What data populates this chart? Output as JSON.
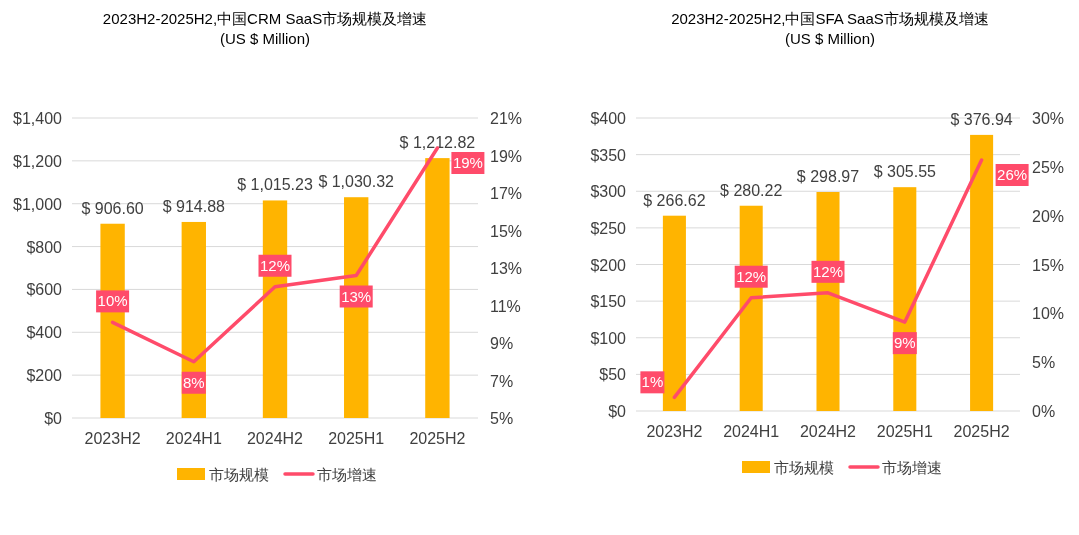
{
  "chart_data": [
    {
      "type": "bar",
      "title": "2023H2-2025H2,中国CRM SaaS市场规模及增速",
      "subtitle": "(US $ Million)",
      "categories": [
        "2023H2",
        "2024H1",
        "2024H2",
        "2025H1",
        "2025H2"
      ],
      "series": [
        {
          "name": "市场规模",
          "color": "#ffb400",
          "values": [
            906.6,
            914.88,
            1015.23,
            1030.32,
            1212.82
          ],
          "value_labels": [
            "$ 906.60",
            "$ 914.88",
            "$ 1,015.23",
            "$ 1,030.32",
            "$ 1,212.82"
          ]
        },
        {
          "name": "市场增速",
          "type": "line",
          "axis": "y2",
          "color": "#ff4b6a",
          "values": [
            10.1,
            8.0,
            12.0,
            12.6,
            19.4
          ],
          "value_labels": [
            "10%",
            "8%",
            "12%",
            "13%",
            "19%"
          ]
        }
      ],
      "ylim": [
        0,
        1400
      ],
      "yticks": [
        {
          "value": 0,
          "label": "$0"
        },
        {
          "value": 200,
          "label": "$200"
        },
        {
          "value": 400,
          "label": "$400"
        },
        {
          "value": 600,
          "label": "$600"
        },
        {
          "value": 800,
          "label": "$800"
        },
        {
          "value": 1000,
          "label": "$1,000"
        },
        {
          "value": 1200,
          "label": "$1,200"
        },
        {
          "value": 1400,
          "label": "$1,400"
        }
      ],
      "y2lim": [
        5,
        21
      ],
      "y2ticks": [
        {
          "value": 5,
          "label": "5%"
        },
        {
          "value": 7,
          "label": "7%"
        },
        {
          "value": 9,
          "label": "9%"
        },
        {
          "value": 11,
          "label": "11%"
        },
        {
          "value": 13,
          "label": "13%"
        },
        {
          "value": 15,
          "label": "15%"
        },
        {
          "value": 17,
          "label": "17%"
        },
        {
          "value": 19,
          "label": "19%"
        },
        {
          "value": 21,
          "label": "21%"
        }
      ],
      "grid": "y",
      "legend": "bottom",
      "marker": "none",
      "line_style": "solid"
    },
    {
      "type": "bar",
      "title": "2023H2-2025H2,中国SFA SaaS市场规模及增速",
      "subtitle": "(US $ Million)",
      "categories": [
        "2023H2",
        "2024H1",
        "2024H2",
        "2025H1",
        "2025H2"
      ],
      "series": [
        {
          "name": "市场规模",
          "color": "#ffb400",
          "values": [
            266.62,
            280.22,
            298.97,
            305.55,
            376.94
          ],
          "value_labels": [
            "$ 266.62",
            "$ 280.22",
            "$ 298.97",
            "$ 305.55",
            "$ 376.94"
          ]
        },
        {
          "name": "市场增速",
          "type": "line",
          "axis": "y2",
          "color": "#ff4b6a",
          "values": [
            1.4,
            11.6,
            12.1,
            9.1,
            25.7
          ],
          "value_labels": [
            "1%",
            "12%",
            "12%",
            "9%",
            "26%"
          ]
        }
      ],
      "ylim": [
        0,
        400
      ],
      "yticks": [
        {
          "value": 0,
          "label": "$0"
        },
        {
          "value": 50,
          "label": "$50"
        },
        {
          "value": 100,
          "label": "$100"
        },
        {
          "value": 150,
          "label": "$150"
        },
        {
          "value": 200,
          "label": "$200"
        },
        {
          "value": 250,
          "label": "$250"
        },
        {
          "value": 300,
          "label": "$300"
        },
        {
          "value": 350,
          "label": "$350"
        },
        {
          "value": 400,
          "label": "$400"
        }
      ],
      "y2lim": [
        0,
        30
      ],
      "y2ticks": [
        {
          "value": 0,
          "label": "0%"
        },
        {
          "value": 5,
          "label": "5%"
        },
        {
          "value": 10,
          "label": "10%"
        },
        {
          "value": 15,
          "label": "15%"
        },
        {
          "value": 20,
          "label": "20%"
        },
        {
          "value": 25,
          "label": "25%"
        },
        {
          "value": 30,
          "label": "30%"
        }
      ],
      "grid": "y",
      "legend": "bottom",
      "marker": "none",
      "line_style": "solid"
    }
  ]
}
